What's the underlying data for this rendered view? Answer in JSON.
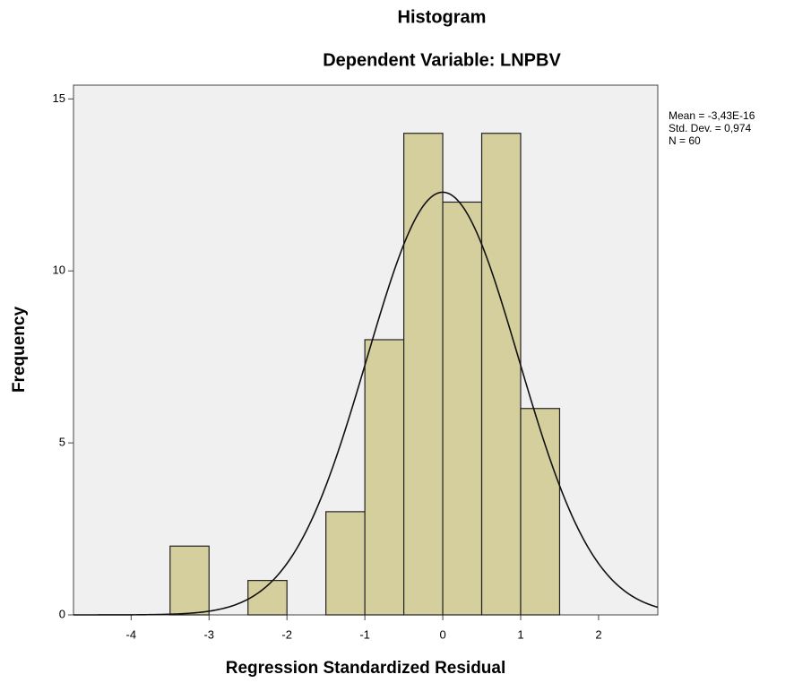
{
  "chart_data": {
    "type": "histogram",
    "title": "Histogram",
    "subtitle": "Dependent Variable: LNPBV",
    "xlabel": "Regression Standardized Residual",
    "ylabel": "Frequency",
    "bins": [
      -3.5,
      -3,
      -2.5,
      -2,
      -1.5,
      -1,
      -0.5,
      0,
      0.5,
      1,
      1.5
    ],
    "values": [
      2,
      0,
      1,
      0,
      3,
      8,
      14,
      12,
      14,
      6
    ],
    "color": "#d4cf9d",
    "xlim": [
      -4.74,
      2.76
    ],
    "ylim": [
      0,
      15.4
    ],
    "xticks": [
      -4,
      -3,
      -2,
      -1,
      0,
      1,
      2
    ],
    "yticks": [
      0,
      5,
      10,
      15
    ],
    "stats": [
      {
        "label": "Mean = -3,43E-16",
        "value": -3.43e-16
      },
      {
        "label": "Std. Dev. = 0,974",
        "value": 0.974
      },
      {
        "label": "N = 60",
        "value": 60
      }
    ]
  }
}
